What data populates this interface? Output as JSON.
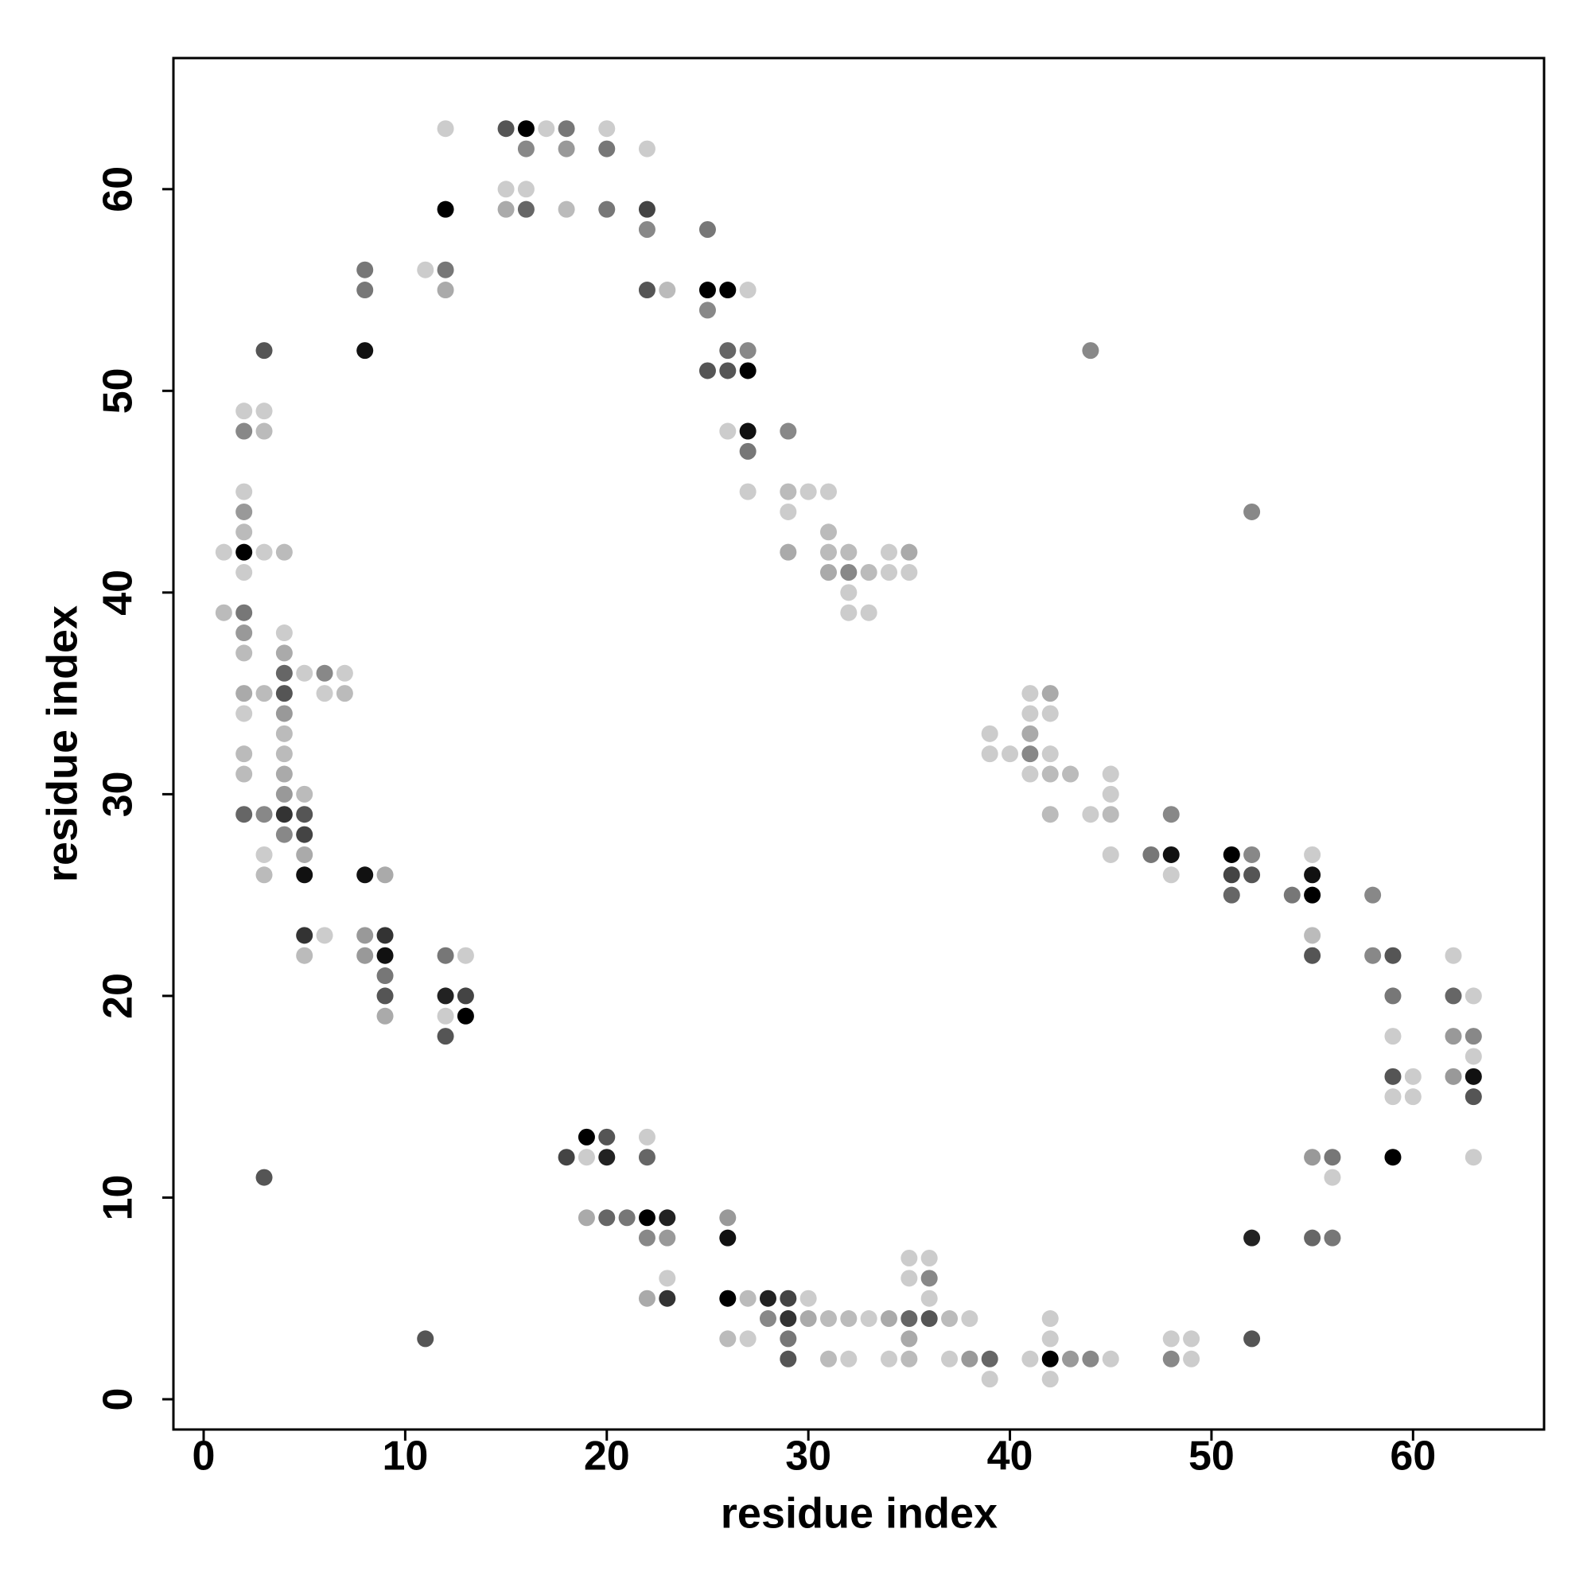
{
  "chart_data": {
    "type": "scatter",
    "x_label": "residue index",
    "y_label": "residue index",
    "xlim": [
      -1.5,
      66.5
    ],
    "ylim": [
      -1.5,
      66.5
    ],
    "xticks": [
      0,
      10,
      20,
      30,
      40,
      50,
      60
    ],
    "yticks": [
      0,
      10,
      20,
      30,
      40,
      50,
      60
    ],
    "x": [
      1,
      1,
      2,
      2,
      2,
      2,
      2,
      2,
      2,
      2,
      2,
      2,
      2,
      2,
      2,
      2,
      2,
      3,
      3,
      3,
      3,
      3,
      3,
      3,
      3,
      3,
      4,
      4,
      4,
      4,
      4,
      4,
      4,
      4,
      4,
      4,
      4,
      4,
      5,
      5,
      5,
      5,
      5,
      5,
      5,
      5,
      6,
      6,
      6,
      7,
      7,
      8,
      8,
      8,
      8,
      8,
      8,
      9,
      9,
      9,
      9,
      9,
      9,
      11,
      11,
      12,
      12,
      12,
      12,
      12,
      12,
      12,
      12,
      13,
      13,
      13,
      15,
      15,
      15,
      16,
      16,
      16,
      16,
      17,
      18,
      18,
      18,
      18,
      19,
      19,
      19,
      20,
      20,
      20,
      20,
      20,
      20,
      21,
      22,
      22,
      22,
      22,
      22,
      22,
      22,
      22,
      22,
      23,
      23,
      23,
      23,
      23,
      25,
      25,
      25,
      25,
      26,
      26,
      26,
      26,
      26,
      26,
      26,
      26,
      27,
      27,
      27,
      27,
      27,
      27,
      27,
      27,
      28,
      28,
      29,
      29,
      29,
      29,
      29,
      29,
      29,
      29,
      30,
      30,
      30,
      31,
      31,
      31,
      31,
      31,
      31,
      32,
      32,
      32,
      32,
      32,
      32,
      33,
      33,
      33,
      34,
      34,
      34,
      34,
      35,
      35,
      35,
      35,
      35,
      35,
      35,
      36,
      36,
      36,
      36,
      37,
      37,
      38,
      38,
      39,
      39,
      39,
      39,
      40,
      41,
      41,
      41,
      41,
      41,
      41,
      42,
      42,
      42,
      42,
      42,
      42,
      42,
      42,
      42,
      43,
      43,
      44,
      44,
      44,
      45,
      45,
      45,
      45,
      45,
      47,
      48,
      48,
      48,
      48,
      48,
      49,
      49,
      51,
      51,
      51,
      52,
      52,
      52,
      52,
      52,
      54,
      55,
      55,
      55,
      55,
      55,
      55,
      55,
      56,
      56,
      56,
      58,
      58,
      59,
      59,
      59,
      59,
      59,
      59,
      60,
      60,
      62,
      62,
      62,
      62,
      63,
      63,
      63,
      63,
      63,
      63
    ],
    "y": [
      42,
      39,
      49,
      48,
      45,
      44,
      43,
      42,
      41,
      39,
      38,
      37,
      35,
      34,
      32,
      31,
      29,
      52,
      49,
      48,
      42,
      35,
      29,
      27,
      26,
      11,
      42,
      38,
      37,
      36,
      35,
      34,
      33,
      32,
      31,
      30,
      29,
      28,
      36,
      30,
      29,
      28,
      27,
      26,
      23,
      22,
      36,
      35,
      23,
      36,
      35,
      56,
      55,
      52,
      26,
      23,
      22,
      26,
      23,
      22,
      21,
      20,
      19,
      56,
      3,
      63,
      59,
      56,
      55,
      22,
      20,
      19,
      18,
      22,
      20,
      19,
      63,
      60,
      59,
      63,
      62,
      60,
      59,
      63,
      63,
      62,
      59,
      12,
      13,
      12,
      9,
      63,
      62,
      59,
      13,
      12,
      9,
      9,
      62,
      59,
      58,
      55,
      13,
      12,
      9,
      8,
      5,
      55,
      9,
      8,
      6,
      5,
      58,
      55,
      54,
      51,
      55,
      52,
      51,
      48,
      9,
      8,
      5,
      3,
      55,
      52,
      51,
      48,
      47,
      45,
      5,
      3,
      5,
      4,
      48,
      45,
      44,
      42,
      5,
      4,
      3,
      2,
      45,
      5,
      4,
      45,
      43,
      42,
      41,
      4,
      2,
      42,
      41,
      40,
      39,
      4,
      2,
      41,
      39,
      4,
      42,
      41,
      4,
      2,
      42,
      41,
      7,
      6,
      4,
      3,
      2,
      7,
      6,
      5,
      4,
      4,
      2,
      4,
      2,
      33,
      32,
      2,
      1,
      32,
      35,
      34,
      33,
      32,
      31,
      2,
      35,
      34,
      32,
      31,
      29,
      4,
      3,
      2,
      1,
      31,
      2,
      52,
      29,
      2,
      31,
      30,
      29,
      27,
      2,
      27,
      29,
      27,
      26,
      3,
      2,
      3,
      2,
      27,
      26,
      25,
      44,
      27,
      26,
      8,
      3,
      25,
      27,
      26,
      25,
      23,
      22,
      12,
      8,
      12,
      11,
      8,
      25,
      22,
      22,
      20,
      18,
      16,
      15,
      12,
      16,
      15,
      22,
      20,
      18,
      16,
      20,
      18,
      17,
      16,
      15,
      12
    ],
    "colors": [
      "#ccc",
      "#bbb",
      "#ccc",
      "#888",
      "#ccc",
      "#999",
      "#bbb",
      "#000",
      "#ccc",
      "#777",
      "#999",
      "#bbb",
      "#aaa",
      "#ccc",
      "#bbb",
      "#bbb",
      "#666",
      "#555",
      "#ccc",
      "#bbb",
      "#ccc",
      "#bbb",
      "#888",
      "#ccc",
      "#bbb",
      "#555",
      "#bbb",
      "#ccc",
      "#aaa",
      "#666",
      "#555",
      "#999",
      "#bbb",
      "#bbb",
      "#aaa",
      "#999",
      "#333",
      "#888",
      "#ccc",
      "#bbb",
      "#555",
      "#444",
      "#aaa",
      "#111",
      "#333",
      "#bbb",
      "#888",
      "#ccc",
      "#ccc",
      "#ccc",
      "#bbb",
      "#777",
      "#777",
      "#111",
      "#111",
      "#999",
      "#999",
      "#aaa",
      "#333",
      "#111",
      "#777",
      "#555",
      "#aaa",
      "#ccc",
      "#555",
      "#ccc",
      "#000",
      "#777",
      "#aaa",
      "#777",
      "#222",
      "#ccc",
      "#555",
      "#ccc",
      "#444",
      "#000",
      "#555",
      "#ccc",
      "#aaa",
      "#000",
      "#888",
      "#ccc",
      "#666",
      "#ccc",
      "#777",
      "#999",
      "#bbb",
      "#444",
      "#000",
      "#ccc",
      "#aaa",
      "#ccc",
      "#777",
      "#777",
      "#555",
      "#222",
      "#666",
      "#777",
      "#ccc",
      "#444",
      "#888",
      "#555",
      "#ccc",
      "#666",
      "#000",
      "#888",
      "#aaa",
      "#bbb",
      "#222",
      "#999",
      "#ccc",
      "#333",
      "#777",
      "#000",
      "#888",
      "#555",
      "#000",
      "#666",
      "#555",
      "#ccc",
      "#999",
      "#111",
      "#000",
      "#bbb",
      "#ccc",
      "#888",
      "#000",
      "#111",
      "#777",
      "#ccc",
      "#bbb",
      "#ccc",
      "#222",
      "#888",
      "#888",
      "#bbb",
      "#ccc",
      "#aaa",
      "#444",
      "#333",
      "#777",
      "#555",
      "#ccc",
      "#ccc",
      "#aaa",
      "#ccc",
      "#bbb",
      "#bbb",
      "#aaa",
      "#bbb",
      "#bbb",
      "#bbb",
      "#888",
      "#ccc",
      "#ccc",
      "#bbb",
      "#ccc",
      "#bbb",
      "#ccc",
      "#ccc",
      "#ccc",
      "#ccc",
      "#aaa",
      "#ccc",
      "#aaa",
      "#ccc",
      "#ccc",
      "#ccc",
      "#666",
      "#aaa",
      "#bbb",
      "#ccc",
      "#888",
      "#ccc",
      "#555",
      "#bbb",
      "#ccc",
      "#ccc",
      "#999",
      "#ccc",
      "#ccc",
      "#666",
      "#ccc",
      "#ccc",
      "#ccc",
      "#ccc",
      "#aaa",
      "#888",
      "#ccc",
      "#ccc",
      "#aaa",
      "#ccc",
      "#ccc",
      "#bbb",
      "#bbb",
      "#ccc",
      "#ccc",
      "#000",
      "#ccc",
      "#bbb",
      "#999",
      "#888",
      "#ccc",
      "#888",
      "#ccc",
      "#ccc",
      "#bbb",
      "#ccc",
      "#ccc",
      "#777",
      "#888",
      "#111",
      "#ccc",
      "#ccc",
      "#888",
      "#ccc",
      "#ccc",
      "#000",
      "#444",
      "#666",
      "#888",
      "#888",
      "#555",
      "#222",
      "#555",
      "#777",
      "#ccc",
      "#111",
      "#000",
      "#bbb",
      "#555",
      "#999",
      "#666",
      "#777",
      "#ccc",
      "#777",
      "#888",
      "#888",
      "#555",
      "#777",
      "#ccc",
      "#555",
      "#ccc",
      "#000",
      "#ccc",
      "#ccc",
      "#ccc",
      "#666",
      "#999",
      "#999",
      "#ccc",
      "#888",
      "#ccc",
      "#111",
      "#555",
      "#ccc"
    ]
  }
}
